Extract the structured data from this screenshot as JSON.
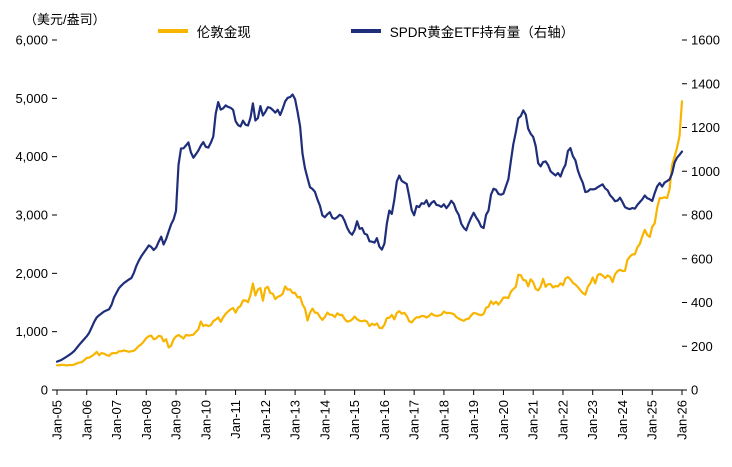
{
  "header": {
    "unit_label": "（美元/盎司）"
  },
  "chart_data": {
    "type": "line",
    "title": "",
    "grid": false,
    "legend_position": "top",
    "x_unit": "month",
    "x_range": [
      "Jan-05",
      "Jan-26"
    ],
    "categories": [
      "Jan-05",
      "Jan-06",
      "Jan-07",
      "Jan-08",
      "Jan-09",
      "Jan-10",
      "Jan-11",
      "Jan-12",
      "Jan-13",
      "Jan-14",
      "Jan-15",
      "Jan-16",
      "Jan-17",
      "Jan-18",
      "Jan-19",
      "Jan-20",
      "Jan-21",
      "Jan-22",
      "Jan-23",
      "Jan-24",
      "Jan-25",
      "Jan-26"
    ],
    "left_axis": {
      "label": "（美元/盎司）",
      "min": 0,
      "max": 6000,
      "step": 1000,
      "tick_labels": [
        "0",
        "1,000",
        "2,000",
        "3,000",
        "4,000",
        "5,000",
        "6,000"
      ]
    },
    "right_axis": {
      "label": "右轴",
      "min": 0,
      "max": 1600,
      "step": 200,
      "tick_labels": [
        "0",
        "200",
        "400",
        "600",
        "800",
        "1000",
        "1200",
        "1400",
        "1600"
      ]
    },
    "series": [
      {
        "name": "伦敦金现",
        "axis": "left",
        "color": "#F8B500",
        "values": [
          424,
          423,
          434,
          429,
          421,
          430,
          425,
          437,
          456,
          470,
          476,
          513,
          550,
          556,
          582,
          611,
          653,
          596,
          633,
          623,
          599,
          584,
          627,
          632,
          631,
          665,
          663,
          679,
          667,
          655,
          665,
          672,
          712,
          754,
          783,
          834,
          889,
          922,
          933,
          871,
          885,
          930,
          918,
          833,
          871,
          730,
          757,
          870,
          919,
          943,
          916,
          883,
          945,
          934,
          939,
          949,
          996,
          1040,
          1175,
          1096,
          1118,
          1095,
          1113,
          1179,
          1207,
          1244,
          1169,
          1246,
          1307,
          1346,
          1383,
          1405,
          1327,
          1411,
          1439,
          1535,
          1536,
          1505,
          1628,
          1826,
          1620,
          1722,
          1746,
          1531,
          1744,
          1770,
          1662,
          1651,
          1558,
          1598,
          1614,
          1648,
          1776,
          1719,
          1726,
          1664,
          1664,
          1588,
          1598,
          1469,
          1394,
          1192,
          1323,
          1395,
          1326,
          1324,
          1253,
          1202,
          1251,
          1326,
          1291,
          1288,
          1250,
          1315,
          1285,
          1287,
          1216,
          1173,
          1182,
          1206,
          1260,
          1213,
          1187,
          1180,
          1191,
          1172,
          1095,
          1135,
          1114,
          1142,
          1065,
          1060,
          1118,
          1234,
          1237,
          1285,
          1212,
          1322,
          1351,
          1309,
          1322,
          1272,
          1178,
          1159,
          1210,
          1248,
          1244,
          1268,
          1266,
          1242,
          1267,
          1311,
          1280,
          1271,
          1275,
          1291,
          1345,
          1318,
          1323,
          1315,
          1301,
          1252,
          1224,
          1201,
          1187,
          1215,
          1222,
          1281,
          1321,
          1313,
          1292,
          1283,
          1305,
          1409,
          1428,
          1520,
          1472,
          1513,
          1464,
          1517,
          1584,
          1586,
          1577,
          1687,
          1730,
          1768,
          1976,
          1968,
          1886,
          1879,
          1777,
          1898,
          1848,
          1734,
          1708,
          1769,
          1905,
          1770,
          1814,
          1815,
          1757,
          1783,
          1775,
          1829,
          1797,
          1909,
          1937,
          1897,
          1837,
          1807,
          1766,
          1711,
          1661,
          1634,
          1769,
          1824,
          1928,
          1827,
          1969,
          1990,
          1963,
          1919,
          1965,
          1940,
          1849,
          1984,
          2036,
          2063,
          2040,
          2044,
          2230,
          2286,
          2327,
          2327,
          2448,
          2503,
          2635,
          2744,
          2657,
          2625,
          2798,
          2858,
          3124,
          3289,
          3289,
          3303,
          3290,
          3448,
          3859,
          4002,
          4150,
          4350,
          4950
        ]
      },
      {
        "name": "SPDR黄金ETF持有量（右轴）",
        "axis": "right",
        "color": "#1F2E7A",
        "values": [
          130,
          134,
          139,
          146,
          153,
          161,
          169,
          179,
          193,
          207,
          220,
          233,
          246,
          262,
          286,
          312,
          332,
          342,
          350,
          359,
          364,
          369,
          390,
          423,
          445,
          466,
          478,
          489,
          497,
          505,
          512,
          536,
          568,
          591,
          611,
          628,
          644,
          661,
          654,
          640,
          652,
          678,
          701,
          665,
          690,
          724,
          757,
          780,
          819,
          1029,
          1104,
          1105,
          1118,
          1132,
          1086,
          1062,
          1078,
          1095,
          1117,
          1133,
          1112,
          1108,
          1130,
          1159,
          1263,
          1316,
          1282,
          1288,
          1301,
          1294,
          1290,
          1281,
          1229,
          1211,
          1205,
          1231,
          1213,
          1209,
          1245,
          1310,
          1232,
          1243,
          1298,
          1255,
          1271,
          1293,
          1290,
          1280,
          1268,
          1281,
          1257,
          1286,
          1320,
          1336,
          1339,
          1351,
          1329,
          1271,
          1205,
          1080,
          1013,
          969,
          927,
          919,
          906,
          872,
          843,
          798,
          790,
          803,
          813,
          787,
          782,
          790,
          801,
          795,
          772,
          741,
          720,
          710,
          731,
          771,
          737,
          740,
          715,
          710,
          680,
          678,
          674,
          694,
          655,
          642,
          669,
          762,
          820,
          805,
          869,
          953,
          980,
          956,
          949,
          942,
          885,
          822,
          799,
          841,
          836,
          854,
          851,
          867,
          840,
          856,
          864,
          846,
          844,
          837,
          849,
          831,
          846,
          865,
          851,
          820,
          800,
          760,
          742,
          730,
          762,
          788,
          810,
          789,
          772,
          747,
          740,
          801,
          820,
          893,
          920,
          915,
          896,
          893,
          898,
          931,
          964,
          1048,
          1123,
          1178,
          1242,
          1252,
          1278,
          1258,
          1194,
          1171,
          1157,
          1115,
          1037,
          1022,
          1042,
          1045,
          1028,
          1000,
          990,
          981,
          992,
          976,
          1008,
          1029,
          1092,
          1106,
          1069,
          1050,
          1005,
          973,
          947,
          905,
          908,
          918,
          917,
          919,
          927,
          934,
          940,
          922,
          913,
          890,
          878,
          863,
          866,
          879,
          859,
          836,
          830,
          827,
          832,
          829,
          846,
          859,
          872,
          889,
          877,
          872,
          864,
          900,
          931,
          946,
          930,
          948,
          955,
          963,
          990,
          1040,
          1062,
          1075,
          1090
        ]
      }
    ]
  }
}
